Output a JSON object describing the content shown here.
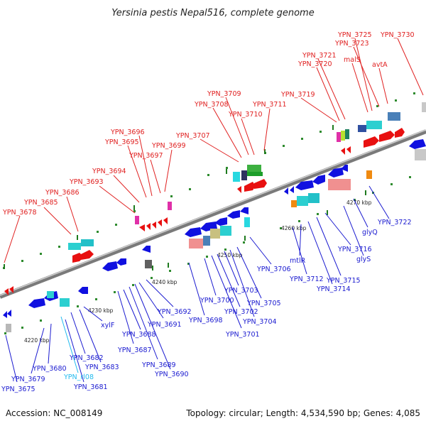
{
  "title": "Yersinia pestis Nepal516, complete genome",
  "footer": {
    "accession": "Accession: NC_008149",
    "stats": "Topology: circular; Length: 4,534,590 bp; Genes: 4,085"
  },
  "colors": {
    "forward_label": "#e02020",
    "reverse_label": "#1a1ad0",
    "rna_label": "#22bbee",
    "forward_arrow": "#e81010",
    "reverse_arrow": "#1010e0",
    "backbone": "#909090"
  },
  "kbp_ticks": [
    "4220 kbp",
    "4230 kbp",
    "4240 kbp",
    "4250 kbp",
    "4260 kbp",
    "4270 kbp"
  ],
  "top_labels": [
    "YPN_3678",
    "YPN_3685",
    "YPN_3686",
    "YPN_3693",
    "YPN_3694",
    "YPN_3695",
    "YPN_3696",
    "YPN_3697",
    "YPN_3699",
    "YPN_3707",
    "YPN_3708",
    "YPN_3709",
    "YPN_3710",
    "YPN_3711",
    "YPN_3719",
    "YPN_3720",
    "YPN_3721",
    "malS",
    "YPN_3723",
    "avtA",
    "YPN_3725",
    "YPN_3730"
  ],
  "bottom_labels": [
    "YPN_3675",
    "YPN_3679",
    "YPN_3680",
    "YPN_rl08",
    "YPN_3681",
    "YPN_3682",
    "YPN_3683",
    "xylF",
    "YPN_3687",
    "YPN_3688",
    "YPN_3689",
    "YPN_3690",
    "YPN_3691",
    "YPN_3692",
    "YPN_3698",
    "YPN_3700",
    "YPN_3701",
    "YPN_3702",
    "YPN_3703",
    "YPN_3704",
    "YPN_3705",
    "YPN_3706",
    "YPN_3712",
    "mtlR",
    "YPN_3714",
    "YPN_3715",
    "YPN_3716",
    "glyS",
    "glyQ",
    "YPN_3722"
  ]
}
